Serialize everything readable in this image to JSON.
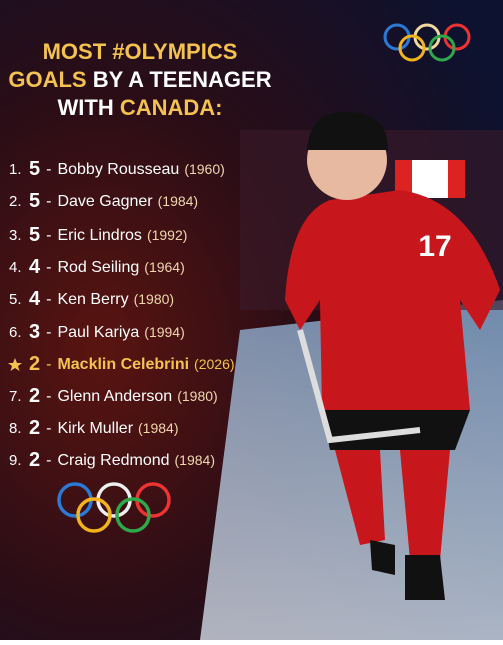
{
  "header": {
    "title_lines": [
      [
        {
          "text": "MOST #OLYMPICS",
          "accent": true
        }
      ],
      [
        {
          "text": "GOALS",
          "accent": true
        },
        {
          "text": " BY A TEENAGER",
          "accent": false
        }
      ],
      [
        {
          "text": "WITH ",
          "accent": false
        },
        {
          "text": "CANADA:",
          "accent": true
        }
      ]
    ]
  },
  "list": {
    "separator": "-",
    "rows": [
      {
        "rank": "1.",
        "goals": 5,
        "name": "Bobby Rousseau",
        "year": "(1960)"
      },
      {
        "rank": "2.",
        "goals": 5,
        "name": "Dave Gagner",
        "year": "(1984)"
      },
      {
        "rank": "3.",
        "goals": 5,
        "name": "Eric Lindros",
        "year": "(1992)"
      },
      {
        "rank": "4.",
        "goals": 4,
        "name": "Rod Seiling",
        "year": "(1964)"
      },
      {
        "rank": "5.",
        "goals": 4,
        "name": "Ken Berry",
        "year": "(1980)"
      },
      {
        "rank": "6.",
        "goals": 3,
        "name": "Paul Kariya",
        "year": "(1994)"
      },
      {
        "goals": 2,
        "name": "Macklin Celebrini",
        "year": "(2026)",
        "highlight": true
      },
      {
        "rank": "7.",
        "goals": 2,
        "name": "Glenn Anderson",
        "year": "(1980)"
      },
      {
        "rank": "8.",
        "goals": 2,
        "name": "Kirk Muller",
        "year": "(1984)"
      },
      {
        "rank": "9.",
        "goals": 2,
        "name": "Craig Redmond",
        "year": "(1984)"
      }
    ]
  },
  "player": {
    "number": "17"
  }
}
